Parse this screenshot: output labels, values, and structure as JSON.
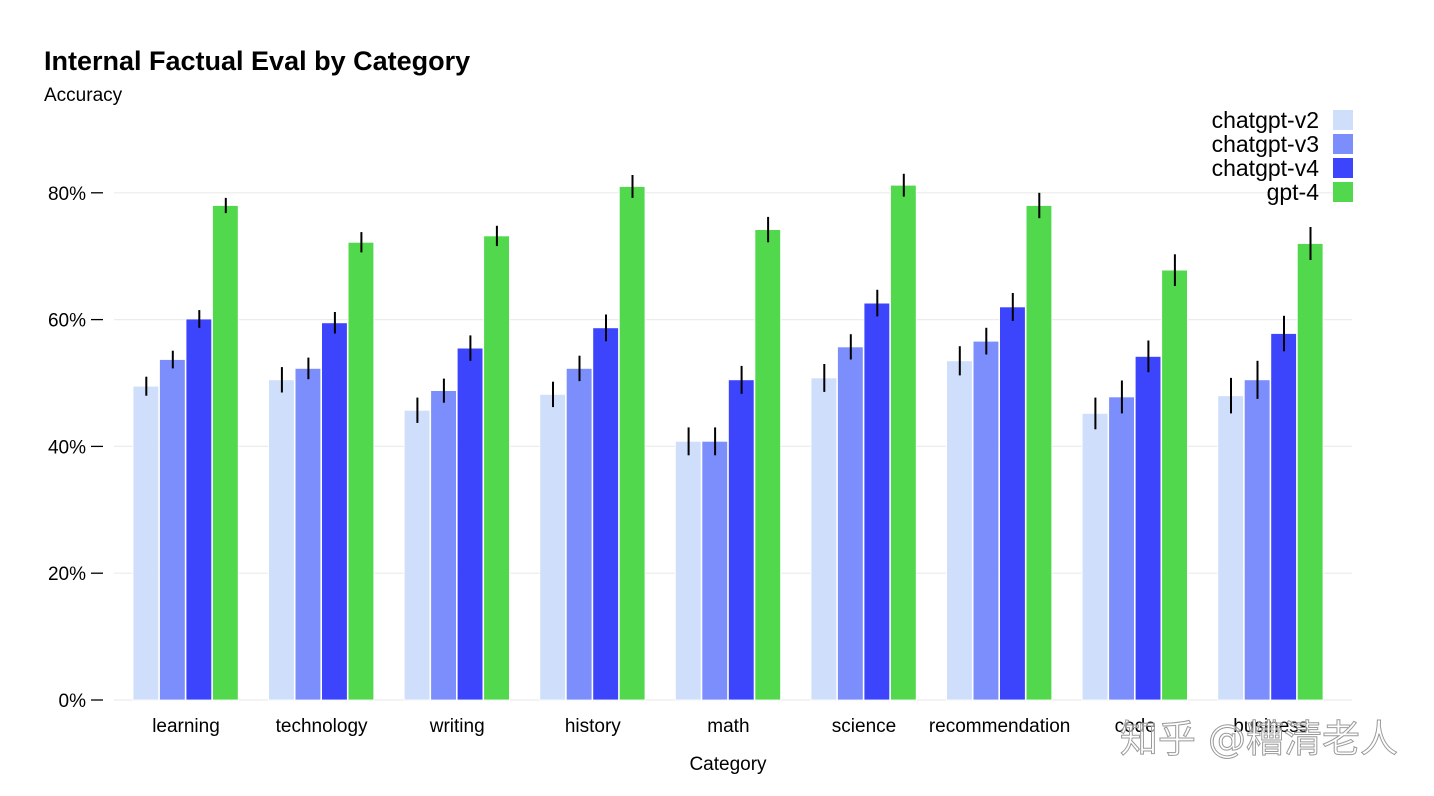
{
  "chart_data": {
    "type": "bar",
    "title": "Internal Factual Eval by Category",
    "ylabel": "Accuracy",
    "xlabel": "Category",
    "ylim": [
      0,
      1
    ],
    "yticks": [
      0,
      0.2,
      0.4,
      0.6,
      0.8
    ],
    "ytick_labels": [
      "0%",
      "20%",
      "40%",
      "60%",
      "80%"
    ],
    "grid": true,
    "legend": "top-right",
    "categories": [
      "learning",
      "technology",
      "writing",
      "history",
      "math",
      "science",
      "recommendation",
      "code",
      "business"
    ],
    "series": [
      {
        "name": "chatgpt-v2",
        "color": "#cfdffb",
        "values": [
          0.495,
          0.505,
          0.457,
          0.482,
          0.408,
          0.508,
          0.535,
          0.452,
          0.48
        ],
        "errors": [
          0.015,
          0.02,
          0.02,
          0.02,
          0.022,
          0.022,
          0.023,
          0.025,
          0.028
        ]
      },
      {
        "name": "chatgpt-v3",
        "color": "#7b8efc",
        "values": [
          0.537,
          0.523,
          0.488,
          0.523,
          0.408,
          0.557,
          0.566,
          0.478,
          0.505
        ],
        "errors": [
          0.014,
          0.017,
          0.019,
          0.02,
          0.022,
          0.02,
          0.021,
          0.026,
          0.03
        ]
      },
      {
        "name": "chatgpt-v4",
        "color": "#3c45fb",
        "values": [
          0.601,
          0.595,
          0.555,
          0.587,
          0.505,
          0.626,
          0.62,
          0.542,
          0.578
        ],
        "errors": [
          0.014,
          0.017,
          0.02,
          0.021,
          0.022,
          0.021,
          0.022,
          0.025,
          0.028
        ]
      },
      {
        "name": "gpt-4",
        "color": "#52d84c",
        "values": [
          0.78,
          0.722,
          0.732,
          0.81,
          0.742,
          0.812,
          0.78,
          0.678,
          0.72
        ],
        "errors": [
          0.012,
          0.016,
          0.016,
          0.018,
          0.02,
          0.018,
          0.02,
          0.025,
          0.026
        ]
      }
    ]
  },
  "watermark": "知乎 @糟清老人"
}
